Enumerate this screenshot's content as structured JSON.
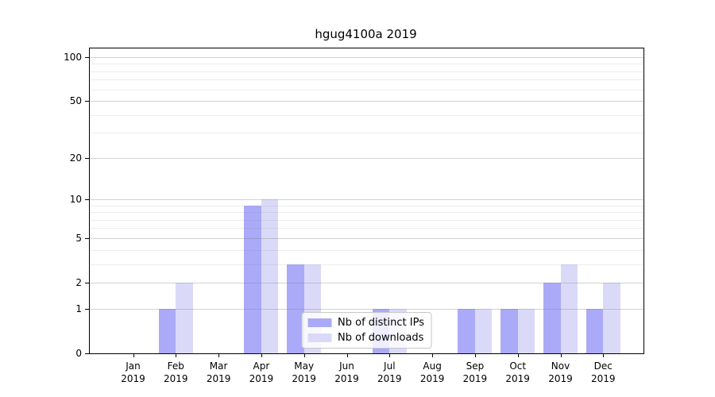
{
  "chart_data": {
    "type": "bar",
    "title": "hgug4100a 2019",
    "categories": [
      "Jan",
      "Feb",
      "Mar",
      "Apr",
      "May",
      "Jun",
      "Jul",
      "Aug",
      "Sep",
      "Oct",
      "Nov",
      "Dec"
    ],
    "x_year_label": "2019",
    "series": [
      {
        "name": "Nb of distinct IPs",
        "color": "#aaaaf8",
        "values": [
          0,
          1,
          0,
          9,
          3,
          0,
          1,
          0,
          1,
          1,
          2,
          1
        ]
      },
      {
        "name": "Nb of downloads",
        "color": "#dadaf8",
        "values": [
          0,
          2,
          0,
          10,
          3,
          0,
          1,
          0,
          1,
          1,
          3,
          2
        ]
      }
    ],
    "y_axis": {
      "scale": "log1p",
      "range": [
        0,
        100
      ],
      "tick_labels": [
        0,
        1,
        2,
        5,
        10,
        20,
        50,
        100
      ],
      "minor_gridlines": [
        3,
        4,
        6,
        7,
        8,
        9,
        30,
        40,
        60,
        70,
        80,
        90
      ]
    },
    "legend_position": "lower center",
    "grid": "horizontal"
  }
}
